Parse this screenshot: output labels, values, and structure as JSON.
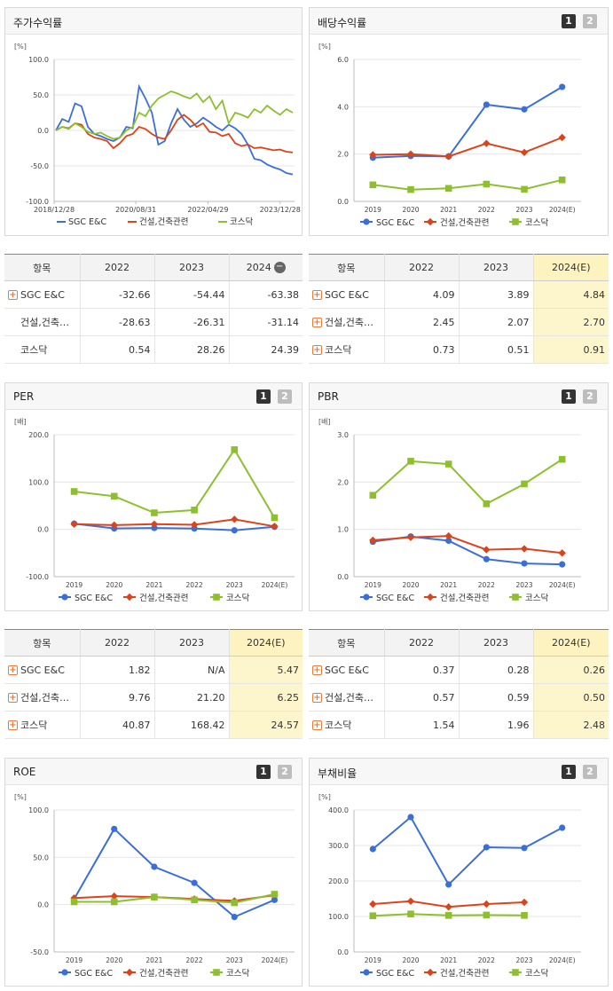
{
  "legend": [
    "SGC E&C",
    "건설,건축관련",
    "코스닥"
  ],
  "colors": [
    "#3b6fd8",
    "#d9441c",
    "#8dbf2e"
  ],
  "btn1": "1",
  "btn2": "2",
  "plus": "+",
  "minus": "−",
  "panels": {
    "p1": {
      "title": "주가수익률",
      "unit": "[%]"
    },
    "p2": {
      "title": "배당수익률",
      "unit": "[%]"
    },
    "p3": {
      "title": "PER",
      "unit": "[배]"
    },
    "p4": {
      "title": "PBR",
      "unit": "[배]"
    },
    "p5": {
      "title": "ROE",
      "unit": "[%]"
    },
    "p6": {
      "title": "부채비율",
      "unit": "[%]"
    }
  },
  "tables": {
    "t1": {
      "head": [
        "항목",
        "2022",
        "2023",
        "2024"
      ],
      "rows": [
        {
          "name": "SGC E&C",
          "v": [
            "-32.66",
            "-54.44",
            "-63.38"
          ]
        },
        {
          "name": "건설,건축…",
          "v": [
            "-28.63",
            "-26.31",
            "-31.14"
          ]
        },
        {
          "name": "코스닥",
          "v": [
            "0.54",
            "28.26",
            "24.39"
          ]
        }
      ]
    },
    "t2": {
      "head": [
        "항목",
        "2022",
        "2023",
        "2024(E)"
      ],
      "rows": [
        {
          "name": "SGC E&C",
          "v": [
            "4.09",
            "3.89",
            "4.84"
          ]
        },
        {
          "name": "건설,건축…",
          "v": [
            "2.45",
            "2.07",
            "2.70"
          ]
        },
        {
          "name": "코스닥",
          "v": [
            "0.73",
            "0.51",
            "0.91"
          ]
        }
      ]
    },
    "t3": {
      "head": [
        "항목",
        "2022",
        "2023",
        "2024(E)"
      ],
      "rows": [
        {
          "name": "SGC E&C",
          "v": [
            "1.82",
            "N/A",
            "5.47"
          ]
        },
        {
          "name": "건설,건축…",
          "v": [
            "9.76",
            "21.20",
            "6.25"
          ]
        },
        {
          "name": "코스닥",
          "v": [
            "40.87",
            "168.42",
            "24.57"
          ]
        }
      ]
    },
    "t4": {
      "head": [
        "항목",
        "2022",
        "2023",
        "2024(E)"
      ],
      "rows": [
        {
          "name": "SGC E&C",
          "v": [
            "0.37",
            "0.28",
            "0.26"
          ]
        },
        {
          "name": "건설,건축…",
          "v": [
            "0.57",
            "0.59",
            "0.50"
          ]
        },
        {
          "name": "코스닥",
          "v": [
            "1.54",
            "1.96",
            "2.48"
          ]
        }
      ]
    }
  },
  "chart_data": [
    {
      "type": "line",
      "title": "주가수익률",
      "ylabel": "[%]",
      "ylim": [
        -100,
        100
      ],
      "yticks": [
        "100.0",
        "50.0",
        "0.0",
        "-50.0",
        "-100.0"
      ],
      "xticks": [
        "2018/12/28",
        "2020/08/31",
        "2022/04/29",
        "2023/12/28"
      ],
      "series": [
        {
          "name": "SGC E&C",
          "values": [
            0,
            16,
            12,
            38,
            34,
            5,
            -5,
            -8,
            -12,
            -15,
            -10,
            5,
            3,
            62,
            45,
            25,
            -20,
            -15,
            10,
            30,
            15,
            5,
            10,
            18,
            12,
            5,
            0,
            8,
            3,
            -5,
            -20,
            -40,
            -42,
            -48,
            -52,
            -55,
            -60,
            -62
          ]
        },
        {
          "name": "건설,건축관련",
          "values": [
            0,
            5,
            3,
            10,
            8,
            -5,
            -10,
            -12,
            -15,
            -25,
            -18,
            -8,
            -5,
            5,
            2,
            -5,
            -10,
            -12,
            0,
            15,
            22,
            15,
            5,
            10,
            -2,
            -3,
            -8,
            -5,
            -18,
            -22,
            -20,
            -25,
            -24,
            -26,
            -28,
            -27,
            -30,
            -31
          ]
        },
        {
          "name": "코스닥",
          "values": [
            0,
            5,
            2,
            10,
            5,
            -2,
            -5,
            -3,
            -8,
            -12,
            -10,
            0,
            5,
            25,
            20,
            35,
            45,
            50,
            55,
            52,
            48,
            45,
            52,
            40,
            48,
            30,
            42,
            10,
            25,
            22,
            18,
            30,
            25,
            35,
            28,
            22,
            30,
            25
          ]
        }
      ]
    },
    {
      "type": "line",
      "title": "배당수익률",
      "ylabel": "[%]",
      "ylim": [
        0,
        6
      ],
      "yticks": [
        "6.0",
        "4.0",
        "2.0",
        "0.0"
      ],
      "categories": [
        "2019",
        "2020",
        "2021",
        "2022",
        "2023",
        "2024(E)"
      ],
      "series": [
        {
          "name": "SGC E&C",
          "values": [
            1.85,
            1.92,
            1.9,
            4.09,
            3.89,
            4.84
          ]
        },
        {
          "name": "건설,건축관련",
          "values": [
            1.97,
            2.0,
            1.9,
            2.45,
            2.07,
            2.7
          ]
        },
        {
          "name": "코스닥",
          "values": [
            0.7,
            0.5,
            0.55,
            0.73,
            0.51,
            0.91
          ]
        }
      ]
    },
    {
      "type": "line",
      "title": "PER",
      "ylabel": "[배]",
      "ylim": [
        -100,
        200
      ],
      "yticks": [
        "200.0",
        "100.0",
        "0.0",
        "-100.0"
      ],
      "categories": [
        "2019",
        "2020",
        "2021",
        "2022",
        "2023",
        "2024(E)"
      ],
      "series": [
        {
          "name": "SGC E&C",
          "values": [
            12,
            2,
            3,
            1.82,
            -2,
            5.47
          ]
        },
        {
          "name": "건설,건축관련",
          "values": [
            11,
            9,
            11,
            9.76,
            21.2,
            6.25
          ]
        },
        {
          "name": "코스닥",
          "values": [
            80,
            70,
            35,
            40.87,
            168.42,
            24.57
          ]
        }
      ]
    },
    {
      "type": "line",
      "title": "PBR",
      "ylabel": "[배]",
      "ylim": [
        0,
        3
      ],
      "yticks": [
        "3.0",
        "2.0",
        "1.0",
        "0.0"
      ],
      "categories": [
        "2019",
        "2020",
        "2021",
        "2022",
        "2023",
        "2024(E)"
      ],
      "series": [
        {
          "name": "SGC E&C",
          "values": [
            0.74,
            0.85,
            0.76,
            0.37,
            0.28,
            0.26
          ]
        },
        {
          "name": "건설,건축관련",
          "values": [
            0.77,
            0.83,
            0.86,
            0.57,
            0.59,
            0.5
          ]
        },
        {
          "name": "코스닥",
          "values": [
            1.72,
            2.44,
            2.38,
            1.54,
            1.96,
            2.48
          ]
        }
      ]
    },
    {
      "type": "line",
      "title": "ROE",
      "ylabel": "[%]",
      "ylim": [
        -50,
        100
      ],
      "yticks": [
        "100.0",
        "50.0",
        "0.0",
        "-50.0"
      ],
      "categories": [
        "2019",
        "2020",
        "2021",
        "2022",
        "2023",
        "2024(E)"
      ],
      "series": [
        {
          "name": "SGC E&C",
          "values": [
            6,
            80,
            40,
            23,
            -13,
            5
          ]
        },
        {
          "name": "건설,건축관련",
          "values": [
            7,
            9,
            8,
            6,
            4,
            10
          ]
        },
        {
          "name": "코스닥",
          "values": [
            3,
            3,
            8,
            5,
            2,
            11
          ]
        }
      ]
    },
    {
      "type": "line",
      "title": "부채비율",
      "ylabel": "[%]",
      "ylim": [
        0,
        400
      ],
      "yticks": [
        "400.0",
        "300.0",
        "200.0",
        "100.0",
        "0.0"
      ],
      "categories": [
        "2019",
        "2020",
        "2021",
        "2022",
        "2023",
        "2024(E)"
      ],
      "series": [
        {
          "name": "SGC E&C",
          "values": [
            290,
            380,
            190,
            295,
            293,
            350
          ]
        },
        {
          "name": "건설,건축관련",
          "values": [
            135,
            143,
            127,
            135,
            140,
            null
          ]
        },
        {
          "name": "코스닥",
          "values": [
            102,
            107,
            103,
            104,
            103,
            null
          ]
        }
      ]
    }
  ]
}
